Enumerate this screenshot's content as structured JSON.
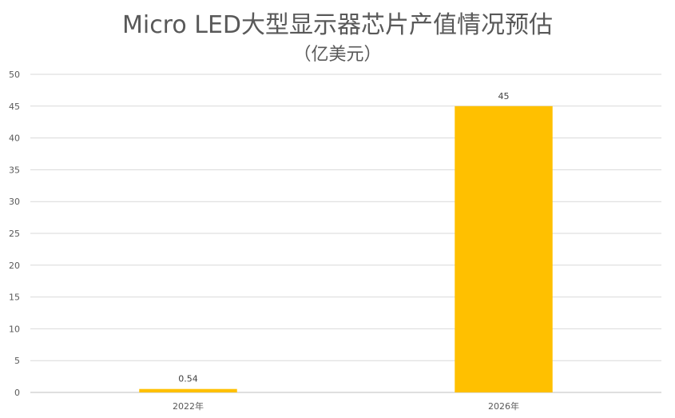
{
  "chart_data": {
    "type": "bar",
    "title": "Micro LED大型显示器芯片产值情况预估",
    "subtitle": "（亿美元）",
    "categories": [
      "2022年",
      "2026年"
    ],
    "values": [
      0.54,
      45
    ],
    "data_labels": [
      "0.54",
      "45"
    ],
    "ylim": [
      0,
      50
    ],
    "yticks": [
      0,
      5,
      10,
      15,
      20,
      25,
      30,
      35,
      40,
      45,
      50
    ],
    "grid": true,
    "legend": "none",
    "colors": {
      "bar": "#FFC000",
      "grid": "#D9D9D9",
      "text": "#595959"
    }
  }
}
